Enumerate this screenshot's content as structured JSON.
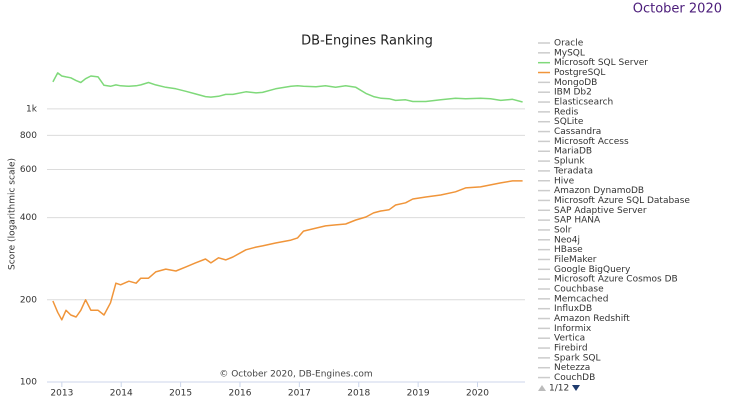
{
  "chart_data": {
    "type": "line",
    "title": "DB-Engines Ranking",
    "date_label": "October 2020",
    "credit": "© October 2020, DB-Engines.com",
    "y_label": "Score (logarithmic scale)",
    "yscale": "log",
    "ylim": [
      100,
      1700
    ],
    "yticks": [
      100,
      200,
      400,
      600,
      800,
      {
        "value": 1000,
        "label": "1k"
      }
    ],
    "xlim": [
      2012.75,
      2020.8
    ],
    "xticks": [
      2013,
      2014,
      2015,
      2016,
      2017,
      2018,
      2019,
      2020
    ],
    "grid": true,
    "x": [
      2012.85,
      2012.93,
      2013.0,
      2013.07,
      2013.15,
      2013.24,
      2013.32,
      2013.4,
      2013.49,
      2013.61,
      2013.71,
      2013.82,
      2013.91,
      2013.99,
      2014.13,
      2014.25,
      2014.33,
      2014.46,
      2014.58,
      2014.75,
      2014.92,
      2015.09,
      2015.25,
      2015.42,
      2015.51,
      2015.64,
      2015.76,
      2015.88,
      2016.1,
      2016.27,
      2016.38,
      2016.6,
      2016.86,
      2016.97,
      2017.07,
      2017.28,
      2017.44,
      2017.61,
      2017.78,
      2017.95,
      2018.12,
      2018.25,
      2018.37,
      2018.51,
      2018.62,
      2018.79,
      2018.91,
      2019.13,
      2019.38,
      2019.63,
      2019.8,
      2020.05,
      2020.22,
      2020.39,
      2020.59,
      2020.76
    ],
    "series": [
      {
        "name": "Oracle",
        "visible": false
      },
      {
        "name": "MySQL",
        "visible": false
      },
      {
        "name": "Microsoft SQL Server",
        "visible": true,
        "color": "#7fd97a",
        "values": [
          1256,
          1355,
          1320,
          1310,
          1300,
          1270,
          1250,
          1290,
          1320,
          1310,
          1220,
          1210,
          1225,
          1215,
          1210,
          1215,
          1225,
          1250,
          1225,
          1200,
          1185,
          1160,
          1135,
          1110,
          1105,
          1112,
          1130,
          1130,
          1155,
          1145,
          1150,
          1185,
          1210,
          1215,
          1210,
          1205,
          1215,
          1200,
          1215,
          1200,
          1140,
          1110,
          1095,
          1090,
          1075,
          1080,
          1065,
          1065,
          1080,
          1095,
          1090,
          1095,
          1090,
          1075,
          1085,
          1060
        ]
      },
      {
        "name": "PostgreSQL",
        "visible": true,
        "color": "#f0953a",
        "values": [
          198,
          180,
          169,
          183,
          176,
          173,
          183,
          200,
          183,
          183,
          176,
          195,
          230,
          227,
          234,
          230,
          240,
          240,
          253,
          259,
          255,
          264,
          273,
          282,
          273,
          285,
          280,
          287,
          305,
          312,
          315,
          323,
          331,
          337,
          357,
          366,
          373,
          376,
          379,
          392,
          402,
          416,
          423,
          427,
          445,
          453,
          468,
          476,
          484,
          497,
          514,
          518,
          527,
          536,
          545,
          545
        ]
      },
      {
        "name": "MongoDB",
        "visible": false
      },
      {
        "name": "IBM Db2",
        "visible": false
      },
      {
        "name": "Elasticsearch",
        "visible": false
      },
      {
        "name": "Redis",
        "visible": false
      },
      {
        "name": "SQLite",
        "visible": false
      },
      {
        "name": "Cassandra",
        "visible": false
      },
      {
        "name": "Microsoft Access",
        "visible": false
      },
      {
        "name": "MariaDB",
        "visible": false
      },
      {
        "name": "Splunk",
        "visible": false
      },
      {
        "name": "Teradata",
        "visible": false
      },
      {
        "name": "Hive",
        "visible": false
      },
      {
        "name": "Amazon DynamoDB",
        "visible": false
      },
      {
        "name": "Microsoft Azure SQL Database",
        "visible": false
      },
      {
        "name": "SAP Adaptive Server",
        "visible": false
      },
      {
        "name": "SAP HANA",
        "visible": false
      },
      {
        "name": "Solr",
        "visible": false
      },
      {
        "name": "Neo4j",
        "visible": false
      },
      {
        "name": "HBase",
        "visible": false
      },
      {
        "name": "FileMaker",
        "visible": false
      },
      {
        "name": "Google BigQuery",
        "visible": false
      },
      {
        "name": "Microsoft Azure Cosmos DB",
        "visible": false
      },
      {
        "name": "Couchbase",
        "visible": false
      },
      {
        "name": "Memcached",
        "visible": false
      },
      {
        "name": "InfluxDB",
        "visible": false
      },
      {
        "name": "Amazon Redshift",
        "visible": false
      },
      {
        "name": "Informix",
        "visible": false
      },
      {
        "name": "Vertica",
        "visible": false
      },
      {
        "name": "Firebird",
        "visible": false
      },
      {
        "name": "Spark SQL",
        "visible": false
      },
      {
        "name": "Netezza",
        "visible": false
      },
      {
        "name": "CouchDB",
        "visible": false
      }
    ],
    "legend_position": "right",
    "legend_page": "1/12"
  }
}
